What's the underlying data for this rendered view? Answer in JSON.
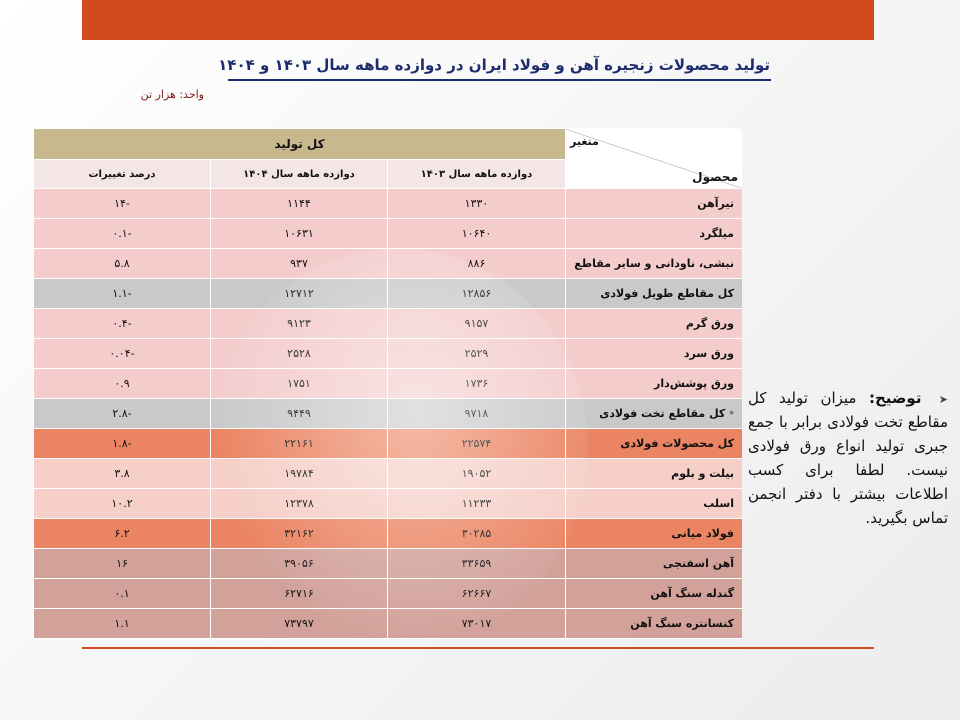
{
  "title": "تولید محصولات زنجیره آهن و فولاد ایران در دوازده ماهه سال ۱۴۰۳ و ۱۴۰۴",
  "unit": "واحد: هزار تن",
  "table": {
    "corner_top": "متغیر",
    "corner_bottom": "محصول",
    "group_header": "کل تولید",
    "columns": [
      "دوازده ماهه سال ۱۴۰۳",
      "دوازده ماهه سال ۱۴۰۴",
      "درصد تغییرات"
    ],
    "rows": [
      {
        "product": "تیرآهن",
        "y1403": "۱۳۳۰",
        "y1404": "۱۱۴۴",
        "change": "-۱۴",
        "style": "normal"
      },
      {
        "product": "میلگرد",
        "y1403": "۱۰۶۴۰",
        "y1404": "۱۰۶۳۱",
        "change": "-۰.۱",
        "style": "normal"
      },
      {
        "product": "نبشی، ناودانی و سایر مقاطع",
        "y1403": "۸۸۶",
        "y1404": "۹۳۷",
        "change": "۵.۸",
        "style": "normal"
      },
      {
        "product": "کل مقاطع طویل فولادی",
        "y1403": "۱۲۸۵۶",
        "y1404": "۱۲۷۱۲",
        "change": "-۱.۱",
        "style": "subtotal"
      },
      {
        "product": "ورق گرم",
        "y1403": "۹۱۵۷",
        "y1404": "۹۱۲۳",
        "change": "-۰.۴",
        "style": "normal"
      },
      {
        "product": "ورق سرد",
        "y1403": "۲۵۲۹",
        "y1404": "۲۵۲۸",
        "change": "-۰.۰۴",
        "style": "normal"
      },
      {
        "product": "ورق پوشش‌دار",
        "y1403": "۱۷۳۶",
        "y1404": "۱۷۵۱",
        "change": "۰.۹",
        "style": "normal"
      },
      {
        "product": "کل مقاطع تخت فولادی",
        "y1403": "۹۷۱۸",
        "y1404": "۹۴۴۹",
        "change": "-۲.۸",
        "style": "subtotal",
        "star": "*"
      },
      {
        "product": "کل محصولات فولادی",
        "y1403": "۲۲۵۷۴",
        "y1404": "۲۲۱۶۱",
        "change": "-۱.۸",
        "style": "total"
      },
      {
        "product": "بیلت و بلوم",
        "y1403": "۱۹۰۵۲",
        "y1404": "۱۹۷۸۴",
        "change": "۳.۸",
        "style": "light"
      },
      {
        "product": "اسلب",
        "y1403": "۱۱۲۳۳",
        "y1404": "۱۲۳۷۸",
        "change": "۱۰.۲",
        "style": "light"
      },
      {
        "product": "فولاد میانی",
        "y1403": "۳۰۲۸۵",
        "y1404": "۳۲۱۶۲",
        "change": "۶.۲",
        "style": "mid"
      },
      {
        "product": "آهن اسفنجی",
        "y1403": "۳۳۶۵۹",
        "y1404": "۳۹۰۵۶",
        "change": "۱۶",
        "style": "brown"
      },
      {
        "product": "گندله سنگ آهن",
        "y1403": "۶۲۶۶۷",
        "y1404": "۶۲۷۱۶",
        "change": "۰.۱",
        "style": "brown"
      },
      {
        "product": "کنسانتره سنگ آهن",
        "y1403": "۷۳۰۱۷",
        "y1404": "۷۳۷۹۷",
        "change": "۱.۱",
        "style": "brown"
      }
    ]
  },
  "note": {
    "bullet_icon": "arrow-bullet-icon",
    "heading": "توضیح:",
    "text": "میزان تولید کل مقاطع تخت فولادی برابر با جمع جبری تولید انواع ورق فولادی نیست. لطفا برای کسب اطلاعات بیشتر با دفتر انجمن تماس بگیرید."
  },
  "colors": {
    "accent": "#d24b1e",
    "title": "#1d2c6e",
    "header": "#c8b88e",
    "subheader": "#f5e6e6",
    "row": "#f4cccc",
    "subtotal": "#c9c9c9",
    "total": "#eb8462",
    "brown": "#d2a29a"
  }
}
